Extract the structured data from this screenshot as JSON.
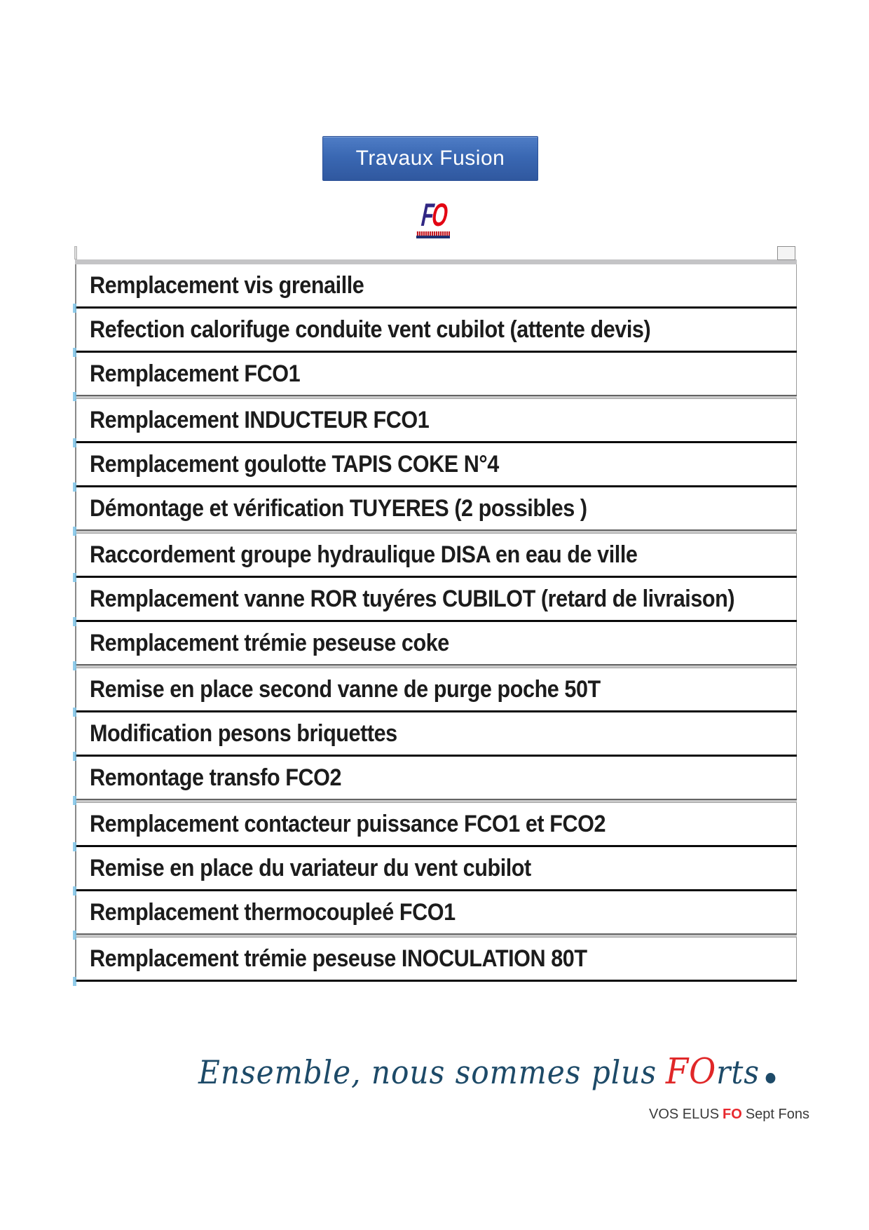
{
  "banner": {
    "title": "Travaux Fusion",
    "bg_color": "#3a68b3"
  },
  "logo": {
    "f": "F",
    "o": "O",
    "f_color": "#312783",
    "o_color": "#e30613"
  },
  "table": {
    "rows": [
      "Remplacement vis grenaille",
      "Refection calorifuge conduite vent cubilot (attente devis)",
      "Remplacement FCO1",
      "Remplacement INDUCTEUR FCO1",
      "Remplacement goulotte TAPIS COKE N°4",
      "Démontage et vérification TUYERES  (2 possibles )",
      "Raccordement groupe hydraulique DISA en eau de ville",
      "Remplacement vanne ROR tuyéres CUBILOT  (retard de livraison)",
      "Remplacement trémie peseuse coke",
      "Remise en place second vanne de purge poche 50T",
      "Modification pesons briquettes",
      "Remontage transfo FCO2",
      "Remplacement contacteur puissance FCO1 et FCO2",
      "Remise en place du variateur du vent cubilot",
      "Remplacement thermocoupleé FCO1",
      "Remplacement trémie peseuse INOCULATION 80T"
    ]
  },
  "slogan": {
    "prefix": "Ensemble, nous sommes plus",
    "fo": "FO",
    "suffix": "rts",
    "main_color": "#1d4a68",
    "fo_color": "#e02728"
  },
  "footer": {
    "prefix": "VOS ELUS",
    "fo": "FO",
    "suffix": "Sept Fons",
    "fo_color": "#e8282e"
  }
}
